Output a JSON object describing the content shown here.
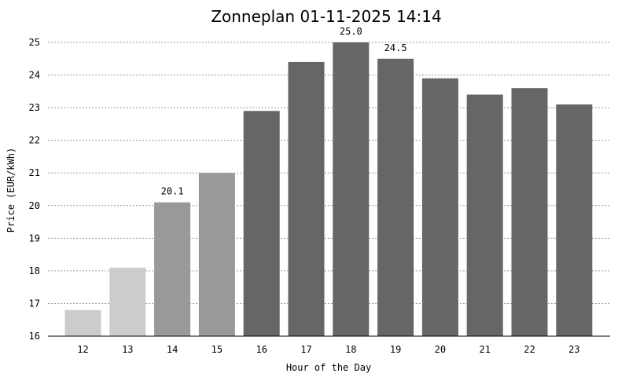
{
  "chart_data": {
    "type": "bar",
    "title": "Zonneplan 01-11-2025 14:14",
    "xlabel": "Hour of the Day",
    "ylabel": "Price (EUR/kWh)",
    "categories": [
      "12",
      "13",
      "14",
      "15",
      "16",
      "17",
      "18",
      "19",
      "20",
      "21",
      "22",
      "23"
    ],
    "values": [
      16.8,
      18.1,
      20.1,
      21.0,
      22.9,
      24.4,
      25.0,
      24.5,
      23.9,
      23.4,
      23.6,
      23.1
    ],
    "bar_colors": [
      "#cccccc",
      "#cccccc",
      "#999999",
      "#999999",
      "#666666",
      "#666666",
      "#666666",
      "#666666",
      "#666666",
      "#666666",
      "#666666",
      "#666666"
    ],
    "ylim": [
      16,
      25
    ],
    "yticks": [
      "16",
      "17",
      "18",
      "19",
      "20",
      "21",
      "22",
      "23",
      "24",
      "25"
    ],
    "grid": true,
    "annotations": [
      {
        "category": "14",
        "text": "20.1"
      },
      {
        "category": "18",
        "text": "25.0"
      },
      {
        "category": "19",
        "text": "24.5"
      }
    ]
  }
}
